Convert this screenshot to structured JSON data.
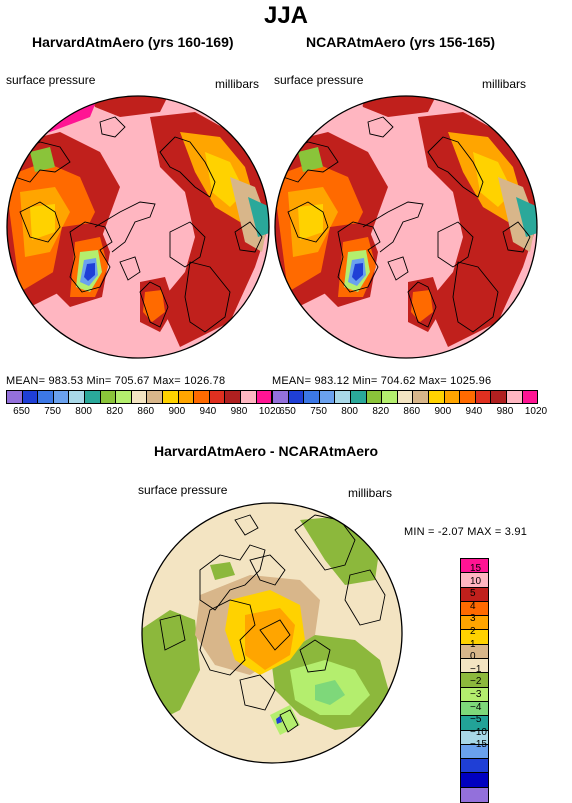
{
  "season": "JJA",
  "left_panel": {
    "title": "HarvardAtmAero (yrs 160-169)",
    "variable": "surface pressure",
    "units": "millibars",
    "stats": "MEAN= 983.53   Min= 705.67   Max= 1026.78"
  },
  "right_panel": {
    "title": "NCARAtmAero (yrs 156-165)",
    "variable": "surface pressure",
    "units": "millibars",
    "stats": "MEAN= 983.12   Min= 704.62   Max= 1025.96"
  },
  "diff_panel": {
    "title": "HarvardAtmAero - NCARAtmAero",
    "variable": "surface pressure",
    "units": "millibars",
    "stats": "MIN =   -2.07 MAX =    3.91"
  },
  "top_colorbar": {
    "colors": [
      "#9370db",
      "#1f3fd6",
      "#3c78e6",
      "#6aa1ee",
      "#a8d8e8",
      "#2aa89a",
      "#8ac43a",
      "#b4ee6e",
      "#f3e4c2",
      "#d8b68a",
      "#ffd200",
      "#ffa500",
      "#ff6a00",
      "#e03020",
      "#b02020",
      "#ffb6c1",
      "#ff1493"
    ],
    "tick_labels": [
      "650",
      "750",
      "800",
      "820",
      "860",
      "900",
      "940",
      "980",
      "1020"
    ]
  },
  "diff_colorbar": {
    "colors": [
      "#ff1493",
      "#ffb6c1",
      "#c0201c",
      "#ff6a00",
      "#ffa500",
      "#ffd200",
      "#d8b68a",
      "#f3e4c2",
      "#8cb83c",
      "#b4ee6e",
      "#7ed87a",
      "#22a398",
      "#a8d8e8",
      "#6aa1ee",
      "#1f3fd6",
      "#0000c0",
      "#9370db"
    ],
    "tick_labels": [
      "15",
      "10",
      "5",
      "4",
      "3",
      "2",
      "1",
      "0",
      "−1",
      "−2",
      "−3",
      "−4",
      "−5",
      "−10",
      "−15"
    ]
  }
}
